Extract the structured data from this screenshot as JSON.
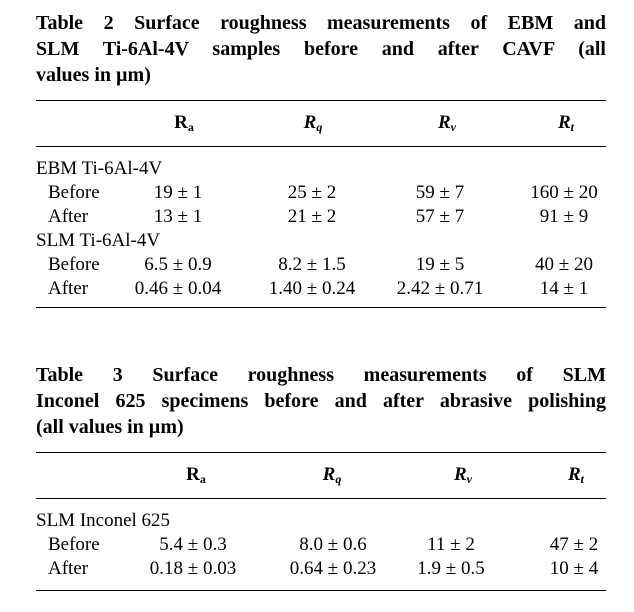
{
  "table2": {
    "caption_lines": [
      "Table 2  Surface roughness measurements of EBM and",
      "SLM Ti-6Al-4V samples before and after CAVF (all",
      "values in µm)"
    ],
    "headers": [
      {
        "sym": "R",
        "sub": "a",
        "italic": false
      },
      {
        "sym": "R",
        "sub": "q",
        "italic": true
      },
      {
        "sym": "R",
        "sub": "v",
        "italic": true
      },
      {
        "sym": "R",
        "sub": "t",
        "italic": true
      }
    ],
    "groups": [
      {
        "name": "EBM Ti-6Al-4V",
        "rows": [
          {
            "label": "Before",
            "values": [
              "19 ± 1",
              "25 ± 2",
              "59 ± 7",
              "160 ± 20"
            ]
          },
          {
            "label": "After",
            "values": [
              "13 ± 1",
              "21 ± 2",
              "57 ± 7",
              "91 ± 9"
            ]
          }
        ]
      },
      {
        "name": "SLM Ti-6Al-4V",
        "rows": [
          {
            "label": "Before",
            "values": [
              "6.5 ± 0.9",
              "8.2 ± 1.5",
              "19 ± 5",
              "40 ± 20"
            ]
          },
          {
            "label": "After",
            "values": [
              "0.46 ± 0.04",
              "1.40 ± 0.24",
              "2.42 ± 0.71",
              "14 ± 1"
            ]
          }
        ]
      }
    ]
  },
  "table3": {
    "caption_lines": [
      "Table 3  Surface roughness measurements of SLM",
      "Inconel 625 specimens before and after abrasive polishing",
      "(all values in µm)"
    ],
    "headers": [
      {
        "sym": "R",
        "sub": "a",
        "italic": false
      },
      {
        "sym": "R",
        "sub": "q",
        "italic": true
      },
      {
        "sym": "R",
        "sub": "v",
        "italic": true
      },
      {
        "sym": "R",
        "sub": "t",
        "italic": true
      }
    ],
    "groups": [
      {
        "name": "SLM Inconel 625",
        "rows": [
          {
            "label": "Before",
            "values": [
              "5.4 ± 0.3",
              "8.0 ± 0.6",
              "11 ± 2",
              "47 ± 2"
            ]
          },
          {
            "label": "After",
            "values": [
              "0.18 ± 0.03",
              "0.64 ± 0.23",
              "1.9 ± 0.5",
              "10 ± 4"
            ]
          }
        ]
      }
    ]
  }
}
